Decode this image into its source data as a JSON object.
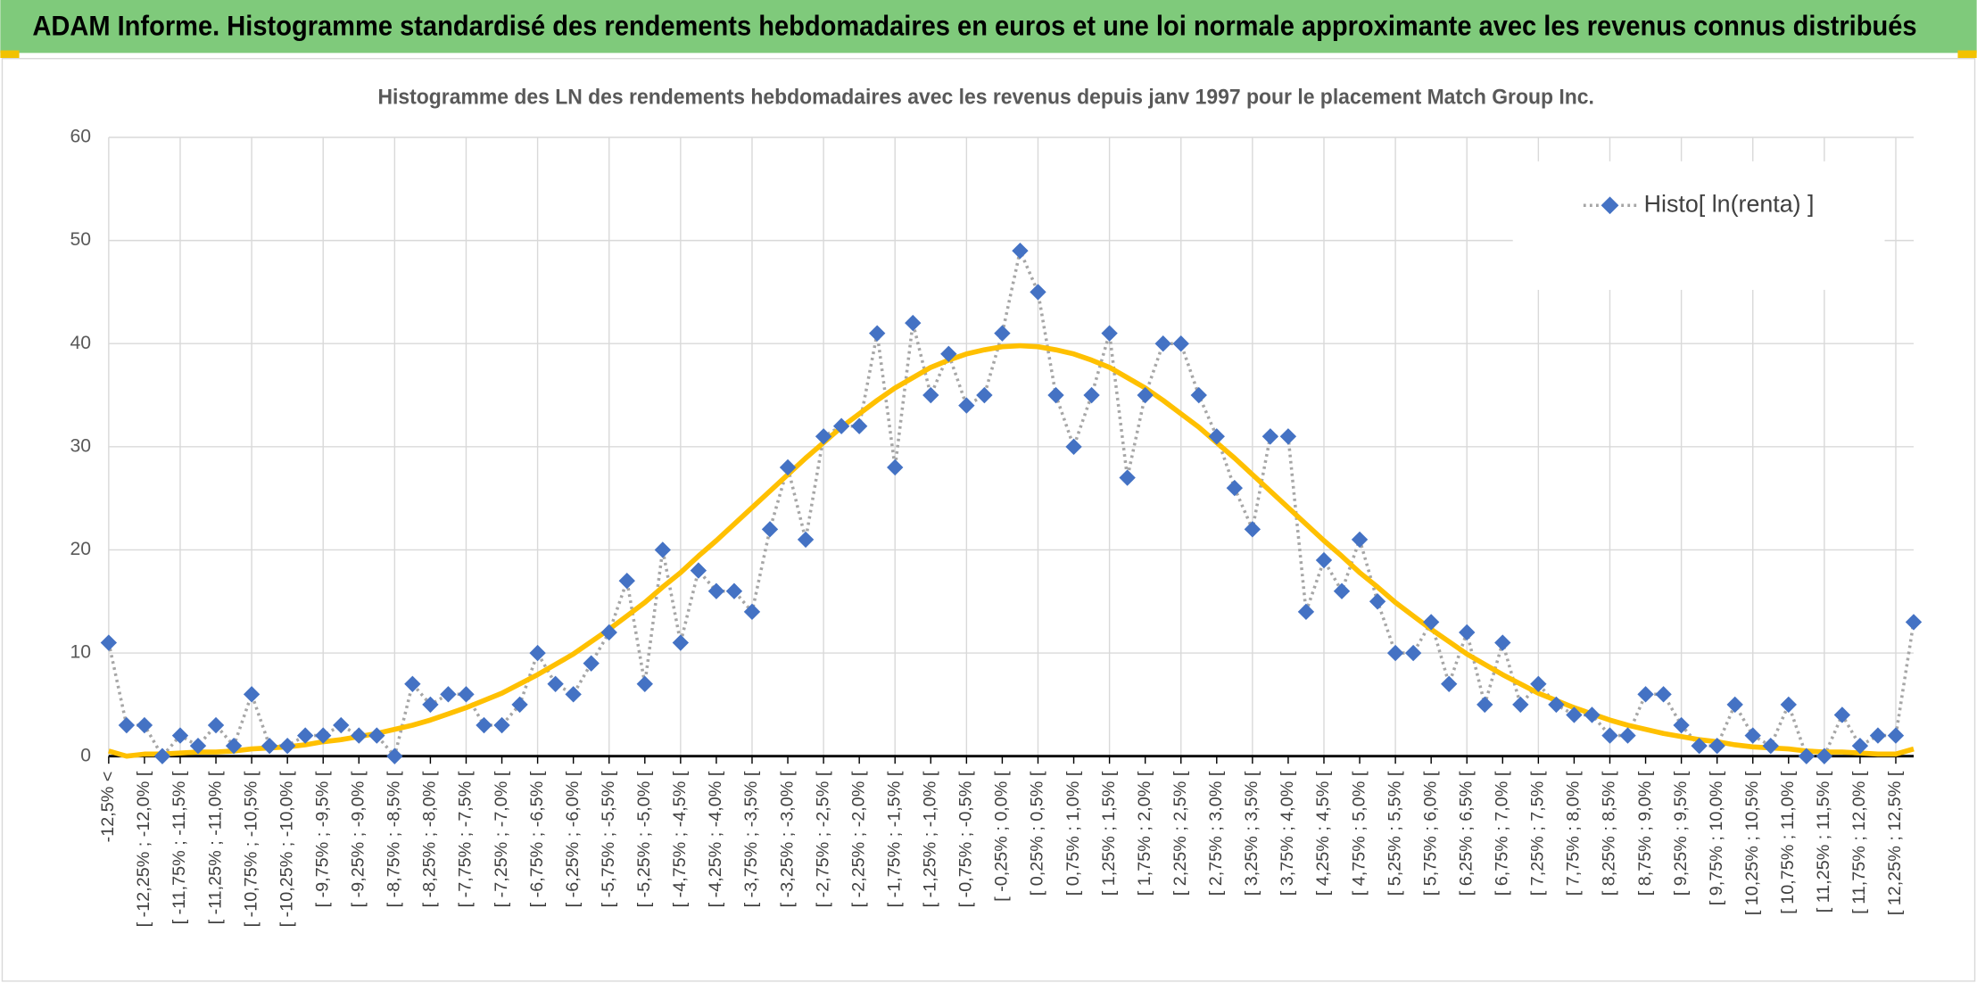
{
  "chart_data": {
    "type": "line",
    "title": "ADAM Informe. Histogramme standardisé des rendements hebdomadaires en euros et une loi normale approximante avec les revenus connus distribués",
    "subtitle": "Histogramme des LN des rendements hebdomadaires avec les revenus depuis janv 1997 pour le placement Match Group Inc.",
    "categories": [
      "-12,5% <",
      null,
      "[ -12,25% ; -12,0% [",
      null,
      "[ -11,75% ; -11,5% [",
      null,
      "[ -11,25% ; -11,0% [",
      null,
      "[ -10,75% ; -10,5% [",
      null,
      "[ -10,25% ; -10,0% [",
      null,
      "[ -9,75% ; -9,5% [",
      null,
      "[ -9,25% ; -9,0% [",
      null,
      "[ -8,75% ; -8,5% [",
      null,
      "[ -8,25% ; -8,0% [",
      null,
      "[ -7,75% ; -7,5% [",
      null,
      "[ -7,25% ; -7,0% [",
      null,
      "[ -6,75% ; -6,5% [",
      null,
      "[ -6,25% ; -6,0% [",
      null,
      "[ -5,75% ; -5,5% [",
      null,
      "[ -5,25% ; -5,0% [",
      null,
      "[ -4,75% ; -4,5% [",
      null,
      "[ -4,25% ; -4,0% [",
      null,
      "[ -3,75% ; -3,5% [",
      null,
      "[ -3,25% ; -3,0% [",
      null,
      "[ -2,75% ; -2,5% [",
      null,
      "[ -2,25% ; -2,0% [",
      null,
      "[ -1,75% ; -1,5% [",
      null,
      "[ -1,25% ; -1,0% [",
      null,
      "[ -0,75% ; -0,5% [",
      null,
      "[ -0,25% ; 0,0% [",
      null,
      "[ 0,25% ; 0,5% [",
      null,
      "[ 0,75% ; 1,0% [",
      null,
      "[ 1,25% ; 1,5% [",
      null,
      "[ 1,75% ; 2,0% [",
      null,
      "[ 2,25% ; 2,5% [",
      null,
      "[ 2,75% ; 3,0% [",
      null,
      "[ 3,25% ; 3,5% [",
      null,
      "[ 3,75% ; 4,0% [",
      null,
      "[ 4,25% ; 4,5% [",
      null,
      "[ 4,75% ; 5,0% [",
      null,
      "[ 5,25% ; 5,5% [",
      null,
      "[ 5,75% ; 6,0% [",
      null,
      "[ 6,25% ; 6,5% [",
      null,
      "[ 6,75% ; 7,0% [",
      null,
      "[ 7,25% ; 7,5% [",
      null,
      "[ 7,75% ; 8,0% [",
      null,
      "[ 8,25% ; 8,5% [",
      null,
      "[ 8,75% ; 9,0% [",
      null,
      "[ 9,25% ; 9,5% [",
      null,
      "[ 9,75% ; 10,0% [",
      null,
      "[ 10,25% ; 10,5% [",
      null,
      "[ 10,75% ; 11,0% [",
      null,
      "[ 11,25% ; 11,5% [",
      null,
      "[ 11,75% ; 12,0% [",
      null,
      "[ 12,25% ; 12,5% [",
      null
    ],
    "series": [
      {
        "name": "Histo[ ln(renta) ]",
        "color": "#4472c4",
        "line_color": "#a6a6a6",
        "line_style": "dotted",
        "marker": "diamond",
        "values": [
          11,
          3,
          3,
          0,
          2,
          1,
          3,
          1,
          6,
          1,
          1,
          2,
          2,
          3,
          2,
          2,
          0,
          7,
          5,
          6,
          6,
          3,
          3,
          5,
          10,
          7,
          6,
          9,
          12,
          17,
          7,
          20,
          11,
          18,
          16,
          16,
          14,
          22,
          28,
          21,
          31,
          32,
          32,
          41,
          28,
          42,
          35,
          39,
          34,
          35,
          41,
          49,
          45,
          35,
          30,
          35,
          41,
          27,
          35,
          40,
          40,
          35,
          31,
          26,
          22,
          31,
          31,
          14,
          19,
          16,
          21,
          15,
          10,
          10,
          13,
          7,
          12,
          5,
          11,
          5,
          7,
          5,
          4,
          4,
          2,
          2,
          6,
          6,
          3,
          1,
          1,
          5,
          2,
          1,
          5,
          0,
          0,
          4,
          1,
          2,
          2,
          13
        ]
      },
      {
        "color": "#ffc000",
        "line_style": "solid",
        "marker": "none",
        "values": [
          0.5,
          0.0,
          0.2,
          0.2,
          0.3,
          0.4,
          0.4,
          0.5,
          0.7,
          0.8,
          0.9,
          1.1,
          1.4,
          1.6,
          1.9,
          2.2,
          2.6,
          3.0,
          3.5,
          4.1,
          4.7,
          5.4,
          6.1,
          7.0,
          7.9,
          8.9,
          9.9,
          11.1,
          12.3,
          13.6,
          14.9,
          16.4,
          17.8,
          19.4,
          20.9,
          22.5,
          24.1,
          25.7,
          27.3,
          28.9,
          30.4,
          31.9,
          33.2,
          34.5,
          35.7,
          36.7,
          37.7,
          38.4,
          39.0,
          39.4,
          39.7,
          39.8,
          39.7,
          39.4,
          39.0,
          38.4,
          37.7,
          36.7,
          35.7,
          34.5,
          33.2,
          31.9,
          30.4,
          28.9,
          27.3,
          25.7,
          24.1,
          22.5,
          20.9,
          19.4,
          17.8,
          16.4,
          14.9,
          13.6,
          12.3,
          11.1,
          9.9,
          8.9,
          7.9,
          7.0,
          6.1,
          5.4,
          4.7,
          4.1,
          3.5,
          3.0,
          2.6,
          2.2,
          1.9,
          1.6,
          1.4,
          1.1,
          0.9,
          0.8,
          0.7,
          0.5,
          0.4,
          0.4,
          0.3,
          0.2,
          0.2,
          0.7
        ]
      }
    ],
    "ylim": [
      0,
      60
    ],
    "yticks": [
      0,
      10,
      20,
      30,
      40,
      50,
      60
    ],
    "grid": true,
    "legend": "top-right"
  }
}
